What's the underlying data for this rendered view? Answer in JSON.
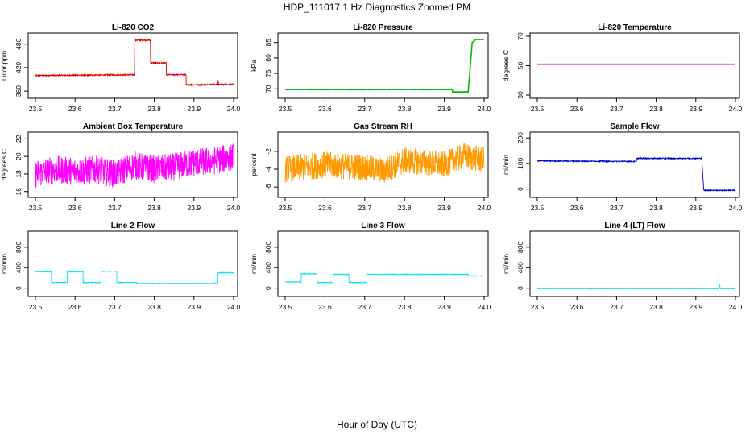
{
  "title": "HDP_111017  1 Hz Diagnostics Zoomed PM",
  "xlabel": "Hour of Day (UTC)",
  "chart_data": [
    {
      "type": "line",
      "title": "Li-820 CO2",
      "ylabel": "Licor ppm",
      "color": "#dd0000",
      "xlim": [
        23.5,
        24.0
      ],
      "ylim": [
        350,
        500
      ],
      "yticks": [
        360,
        420,
        480
      ],
      "xticks": [
        23.5,
        23.6,
        23.7,
        23.8,
        23.9,
        24.0
      ],
      "noise": 1.5,
      "x": [
        23.5,
        23.75,
        23.75,
        23.79,
        23.79,
        23.83,
        23.83,
        23.88,
        23.88,
        23.96,
        23.961,
        23.962,
        23.963,
        24.0
      ],
      "y": [
        400,
        402,
        490,
        490,
        432,
        432,
        402,
        402,
        376,
        377,
        390,
        374,
        377,
        377
      ]
    },
    {
      "type": "line",
      "title": "Li-820 Pressure",
      "ylabel": "kPa",
      "color": "#00bb00",
      "xlim": [
        23.5,
        24.0
      ],
      "ylim": [
        68,
        87
      ],
      "yticks": [
        70,
        75,
        80,
        85
      ],
      "xticks": [
        23.5,
        23.6,
        23.7,
        23.8,
        23.9,
        24.0
      ],
      "noise": 0.05,
      "x": [
        23.5,
        23.92,
        23.92,
        23.96,
        23.97,
        23.98,
        24.0
      ],
      "y": [
        69.8,
        69.8,
        69.0,
        69.0,
        85.0,
        86.0,
        86.0
      ]
    },
    {
      "type": "line",
      "title": "Li-820 Temperature",
      "ylabel": "degrees C",
      "color": "#cc00cc",
      "xlim": [
        23.5,
        24.0
      ],
      "ylim": [
        30,
        70
      ],
      "yticks": [
        30,
        50,
        70
      ],
      "xticks": [
        23.5,
        23.6,
        23.7,
        23.8,
        23.9,
        24.0
      ],
      "noise": 0,
      "x": [
        23.5,
        24.0
      ],
      "y": [
        51,
        51
      ]
    },
    {
      "type": "line",
      "title": "Ambient Box Temperature",
      "ylabel": "degrees C",
      "color": "#ff00ff",
      "xlim": [
        23.5,
        24.0
      ],
      "ylim": [
        15.7,
        22.4
      ],
      "yticks": [
        16,
        18,
        20,
        22
      ],
      "xticks": [
        23.5,
        23.6,
        23.7,
        23.8,
        23.9,
        24.0
      ],
      "noise": 1.6,
      "x": [
        23.5,
        23.55,
        23.6,
        23.65,
        23.7,
        23.75,
        23.8,
        23.85,
        23.9,
        23.95,
        24.0
      ],
      "y": [
        18.0,
        18.5,
        18.3,
        18.5,
        18.0,
        19.0,
        18.5,
        18.8,
        19.3,
        19.5,
        20.0
      ]
    },
    {
      "type": "line",
      "title": "Gas Stream RH",
      "ylabel": "percent",
      "color": "#ff9900",
      "xlim": [
        23.5,
        24.0
      ],
      "ylim": [
        -6.8,
        -0.2
      ],
      "yticks": [
        -6,
        -4,
        -2
      ],
      "xticks": [
        23.5,
        23.6,
        23.7,
        23.8,
        23.9,
        24.0
      ],
      "noise": 1.5,
      "x": [
        23.5,
        23.6,
        23.7,
        23.75,
        23.8,
        23.9,
        23.95,
        24.0
      ],
      "y": [
        -4.0,
        -3.5,
        -3.8,
        -4.2,
        -3.0,
        -3.5,
        -2.5,
        -3.0
      ]
    },
    {
      "type": "line",
      "title": "Sample Flow",
      "ylabel": "ml/min",
      "color": "#0000cc",
      "xlim": [
        23.5,
        24.0
      ],
      "ylim": [
        -20,
        210
      ],
      "yticks": [
        0,
        100,
        200
      ],
      "xticks": [
        23.5,
        23.6,
        23.7,
        23.8,
        23.9,
        24.0
      ],
      "noise": 2,
      "x": [
        23.5,
        23.75,
        23.75,
        23.915,
        23.92,
        24.0
      ],
      "y": [
        110,
        108,
        120,
        120,
        -5,
        -5
      ]
    },
    {
      "type": "line",
      "title": "Line 2 Flow",
      "ylabel": "ml/min",
      "color": "#00e5ee",
      "xlim": [
        23.5,
        24.0
      ],
      "ylim": [
        -100,
        1050
      ],
      "yticks": [
        0,
        400,
        800
      ],
      "xticks": [
        23.5,
        23.6,
        23.7,
        23.8,
        23.9,
        24.0
      ],
      "noise": 6,
      "x": [
        23.5,
        23.54,
        23.54,
        23.58,
        23.58,
        23.62,
        23.62,
        23.665,
        23.665,
        23.705,
        23.705,
        23.755,
        23.755,
        23.96,
        23.96,
        24.0
      ],
      "y": [
        320,
        320,
        110,
        110,
        320,
        320,
        110,
        110,
        330,
        330,
        110,
        110,
        90,
        90,
        300,
        300
      ]
    },
    {
      "type": "line",
      "title": "Line 3 Flow",
      "ylabel": "ml/min",
      "color": "#00e5ee",
      "xlim": [
        23.5,
        24.0
      ],
      "ylim": [
        -100,
        1050
      ],
      "yticks": [
        0,
        400,
        800
      ],
      "xticks": [
        23.5,
        23.6,
        23.7,
        23.8,
        23.9,
        24.0
      ],
      "noise": 6,
      "x": [
        23.5,
        23.5,
        23.54,
        23.54,
        23.58,
        23.58,
        23.62,
        23.62,
        23.66,
        23.66,
        23.705,
        23.705,
        23.96,
        23.96,
        24.0
      ],
      "y": [
        250,
        120,
        120,
        280,
        280,
        110,
        110,
        270,
        270,
        110,
        110,
        270,
        270,
        240,
        240
      ]
    },
    {
      "type": "line",
      "title": "Line 4 (LT) Flow",
      "ylabel": "ml/min",
      "color": "#00e5ee",
      "xlim": [
        23.5,
        24.0
      ],
      "ylim": [
        -100,
        1050
      ],
      "yticks": [
        0,
        400,
        800
      ],
      "xticks": [
        23.5,
        23.6,
        23.7,
        23.8,
        23.9,
        24.0
      ],
      "noise": 3,
      "x": [
        23.5,
        23.958,
        23.96,
        23.962,
        23.964,
        24.0
      ],
      "y": [
        -10,
        -10,
        60,
        -10,
        -10,
        -10
      ]
    }
  ]
}
